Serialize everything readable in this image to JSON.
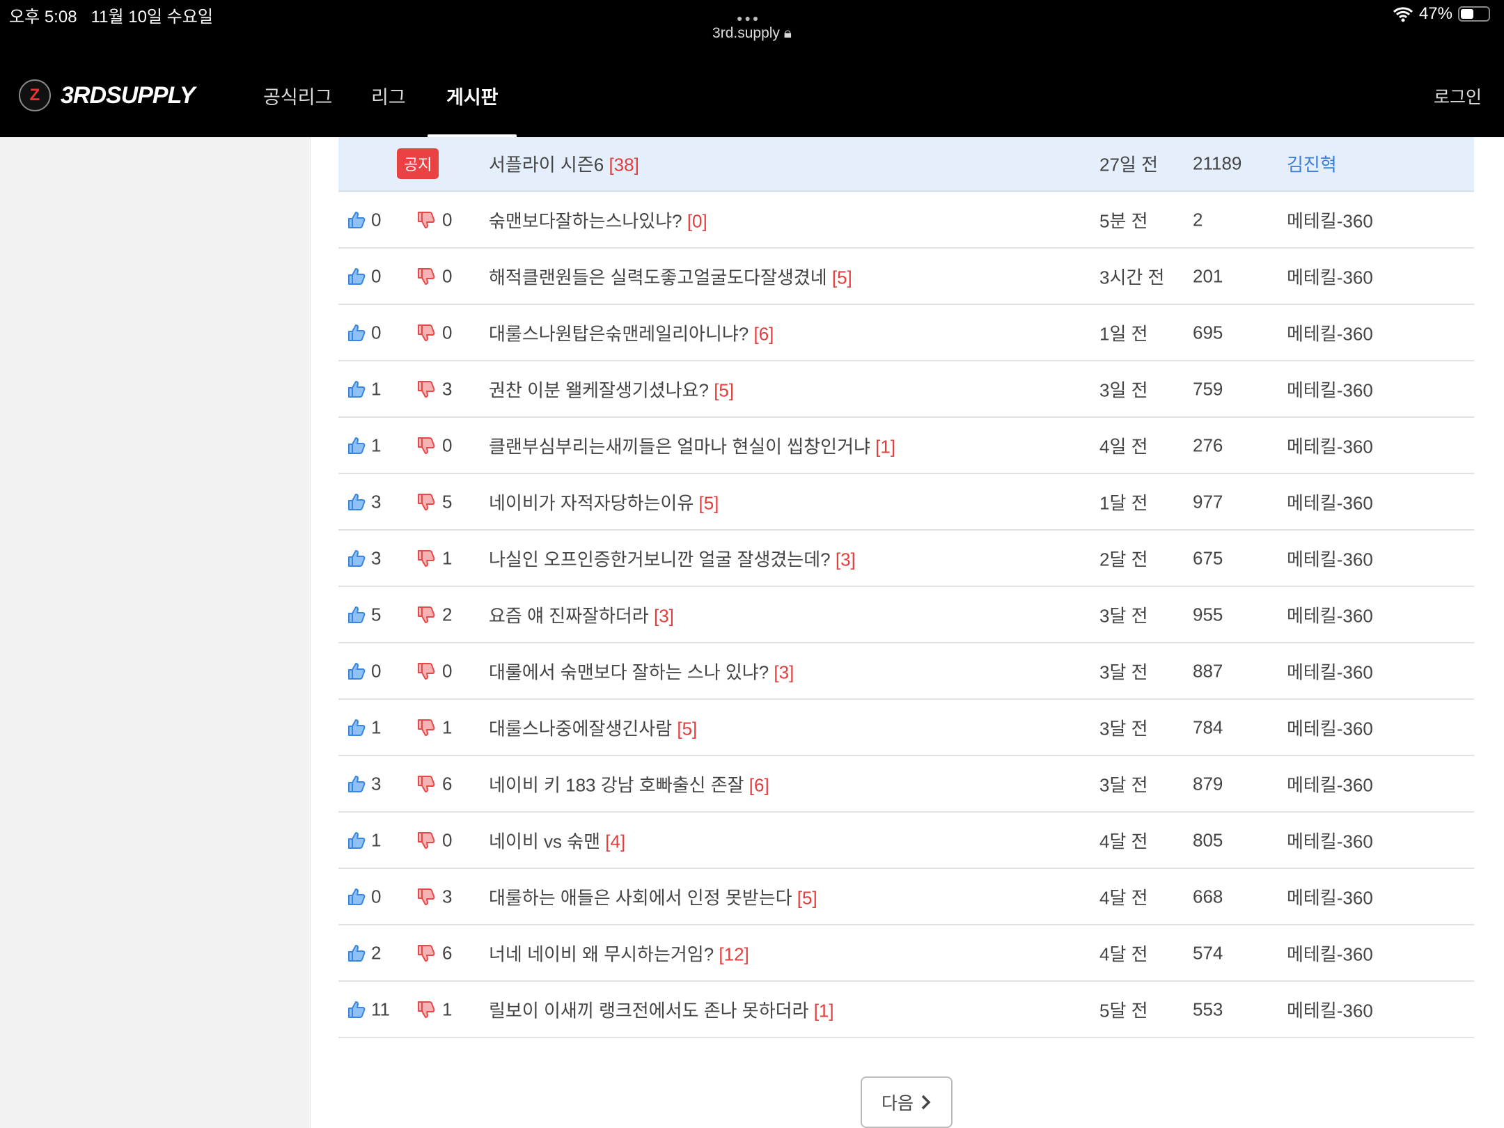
{
  "status_bar": {
    "time": "오후 5:08",
    "date": "11월 10일 수요일",
    "url": "3rd.supply",
    "battery": "47%",
    "battery_level": 47
  },
  "header": {
    "logo": "3RDSUPPLY",
    "nav": [
      "공식리그",
      "리그",
      "게시판"
    ],
    "active_nav": "게시판",
    "login": "로그인"
  },
  "colors": {
    "accent_red": "#e43d3d",
    "notice_bg": "#e4effb",
    "author_link": "#3a7ed8",
    "thumb_up": "#3a86e0",
    "thumb_down": "#e34b4b"
  },
  "notice": {
    "badge": "공지",
    "title": "서플라이 시즌6",
    "comments": "[38]",
    "time": "27일 전",
    "views": "21189",
    "author": "김진혁"
  },
  "posts": [
    {
      "up": "0",
      "down": "0",
      "title": "숚맨보다잘하는스나있냐?",
      "comments": "[0]",
      "time": "5분 전",
      "views": "2",
      "author": "메테킬-360"
    },
    {
      "up": "0",
      "down": "0",
      "title": "해적클랜원들은 실력도좋고얼굴도다잘생겼네",
      "comments": "[5]",
      "time": "3시간 전",
      "views": "201",
      "author": "메테킬-360"
    },
    {
      "up": "0",
      "down": "0",
      "title": "대룰스나원탑은숚맨레일리아니냐?",
      "comments": "[6]",
      "time": "1일 전",
      "views": "695",
      "author": "메테킬-360"
    },
    {
      "up": "1",
      "down": "3",
      "title": "권찬 이분 왤케잘생기셨나요?",
      "comments": "[5]",
      "time": "3일 전",
      "views": "759",
      "author": "메테킬-360"
    },
    {
      "up": "1",
      "down": "0",
      "title": "클랜부심부리는새끼들은 얼마나 현실이 씹창인거냐",
      "comments": "[1]",
      "time": "4일 전",
      "views": "276",
      "author": "메테킬-360"
    },
    {
      "up": "3",
      "down": "5",
      "title": "네이비가 자적자당하는이유",
      "comments": "[5]",
      "time": "1달 전",
      "views": "977",
      "author": "메테킬-360"
    },
    {
      "up": "3",
      "down": "1",
      "title": "나실인 오프인증한거보니깐 얼굴 잘생겼는데?",
      "comments": "[3]",
      "time": "2달 전",
      "views": "675",
      "author": "메테킬-360"
    },
    {
      "up": "5",
      "down": "2",
      "title": "요즘 얘 진짜잘하더라",
      "comments": "[3]",
      "time": "3달 전",
      "views": "955",
      "author": "메테킬-360"
    },
    {
      "up": "0",
      "down": "0",
      "title": "대룰에서 숚맨보다 잘하는 스나 있냐?",
      "comments": "[3]",
      "time": "3달 전",
      "views": "887",
      "author": "메테킬-360"
    },
    {
      "up": "1",
      "down": "1",
      "title": "대룰스나중에잘생긴사람",
      "comments": "[5]",
      "time": "3달 전",
      "views": "784",
      "author": "메테킬-360"
    },
    {
      "up": "3",
      "down": "6",
      "title": "네이비 키 183 강남 호빠출신 존잘",
      "comments": "[6]",
      "time": "3달 전",
      "views": "879",
      "author": "메테킬-360"
    },
    {
      "up": "1",
      "down": "0",
      "title": "네이비 vs 숚맨",
      "comments": "[4]",
      "time": "4달 전",
      "views": "805",
      "author": "메테킬-360"
    },
    {
      "up": "0",
      "down": "3",
      "title": "대룰하는 애들은 사회에서 인정 못받는다",
      "comments": "[5]",
      "time": "4달 전",
      "views": "668",
      "author": "메테킬-360"
    },
    {
      "up": "2",
      "down": "6",
      "title": "너네 네이비 왜 무시하는거임?",
      "comments": "[12]",
      "time": "4달 전",
      "views": "574",
      "author": "메테킬-360"
    },
    {
      "up": "11",
      "down": "1",
      "title": "릴보이 이새끼 랭크전에서도 존나 못하더라",
      "comments": "[1]",
      "time": "5달 전",
      "views": "553",
      "author": "메테킬-360"
    }
  ],
  "pagination": {
    "next_label": "다음",
    "next_icon": "chevron-right-icon"
  }
}
